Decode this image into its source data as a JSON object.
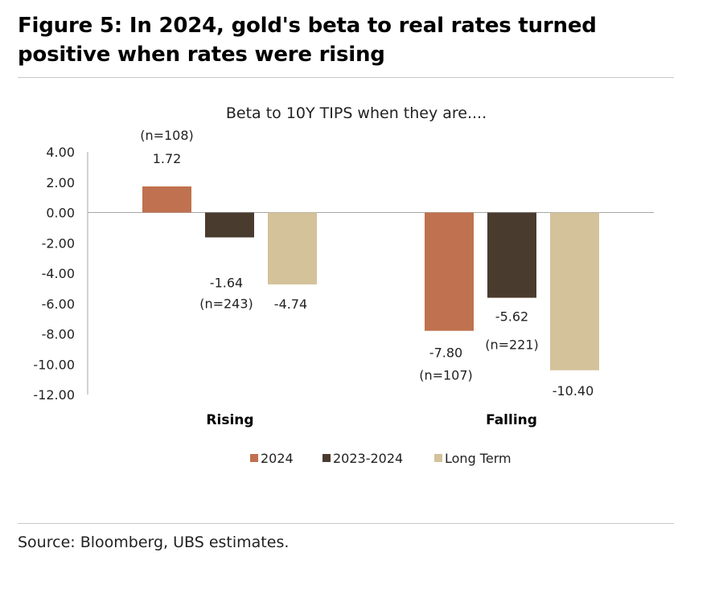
{
  "figure": {
    "title": "Figure 5: In 2024, gold's beta to real rates turned positive when rates were rising",
    "source": "Source: Bloomberg, UBS estimates."
  },
  "chart_data": {
    "type": "bar",
    "title": "Beta to 10Y TIPS when they are....",
    "categories": [
      "Rising",
      "Falling"
    ],
    "series": [
      {
        "name": "2024",
        "values": [
          1.72,
          -7.8
        ],
        "counts": [
          "(n=108)",
          "(n=107)"
        ],
        "color": "#c0714f"
      },
      {
        "name": "2023-2024",
        "values": [
          -1.64,
          -5.62
        ],
        "counts": [
          "(n=243)",
          "(n=221)"
        ],
        "color": "#4a3b2f"
      },
      {
        "name": "Long Term",
        "values": [
          -4.74,
          -10.4
        ],
        "counts": [
          "",
          ""
        ],
        "color": "#d4c29a"
      }
    ],
    "ylim": [
      -12,
      4
    ],
    "yticks": [
      4,
      2,
      0,
      -2,
      -4,
      -6,
      -8,
      -10,
      -12
    ],
    "ytick_labels": [
      "4.00",
      "2.00",
      "0.00",
      "-2.00",
      "-4.00",
      "-6.00",
      "-8.00",
      "-10.00",
      "-12.00"
    ],
    "value_labels": [
      [
        "1.72",
        "-7.80"
      ],
      [
        "-1.64",
        "-5.62"
      ],
      [
        "-4.74",
        "-10.40"
      ]
    ],
    "xlabel": "",
    "ylabel": "",
    "grid": false,
    "legend_position": "bottom"
  }
}
